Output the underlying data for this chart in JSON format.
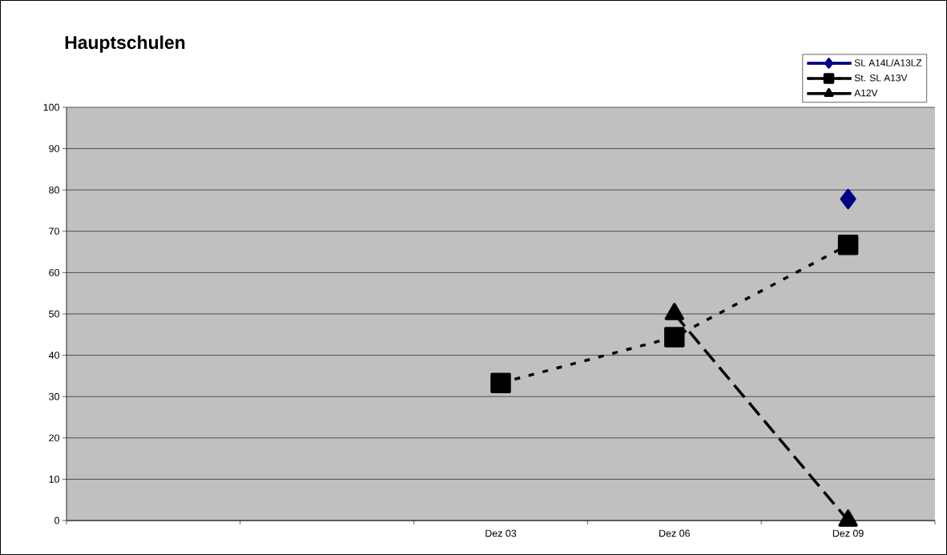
{
  "chart_data": {
    "type": "line",
    "title": "Hauptschulen",
    "categories": [
      null,
      null,
      "Dez 03",
      "Dez 06",
      "Dez 09"
    ],
    "series": [
      {
        "name": "SL  A14L/A13LZ",
        "color": "#000080",
        "marker": "diamond",
        "line_style": "solid",
        "values": [
          null,
          null,
          null,
          null,
          77.8
        ]
      },
      {
        "name": "St. SL A13V",
        "color": "#000000",
        "marker": "square",
        "line_style": "dotted",
        "values": [
          null,
          null,
          33.3,
          44.4,
          66.7
        ]
      },
      {
        "name": "A12V",
        "color": "#000000",
        "marker": "triangle",
        "line_style": "dashed",
        "values": [
          null,
          null,
          null,
          50,
          0
        ]
      }
    ],
    "ylim": [
      0,
      100
    ],
    "yticks": [
      0,
      10,
      20,
      30,
      40,
      50,
      60,
      70,
      80,
      90,
      100
    ],
    "grid": "y",
    "legend": "top right"
  }
}
